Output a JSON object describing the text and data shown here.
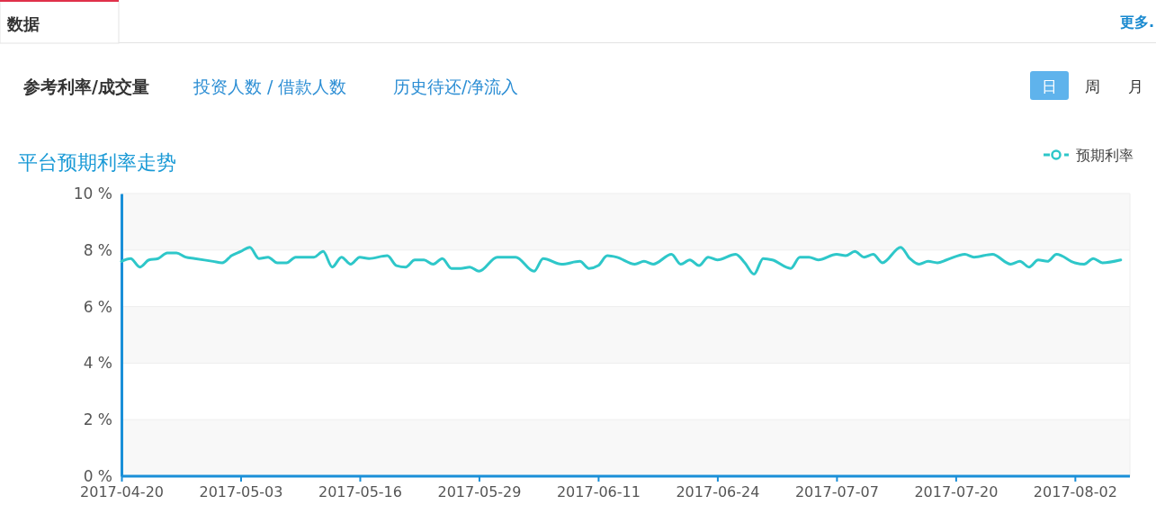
{
  "chart_data": {
    "type": "line",
    "title": "平台预期利率走势",
    "annotations": [
      "数据",
      "更多.",
      "参考利率/成交量",
      "投资人数 / 借款人数",
      "历史待还/净流入",
      "日",
      "周",
      "月"
    ],
    "series": [
      {
        "name": "预期利率",
        "color": "#2ec7c9",
        "x": [
          "2017-04-20",
          "2017-04-21",
          "2017-04-22",
          "2017-04-23",
          "2017-04-24",
          "2017-04-25",
          "2017-04-26",
          "2017-04-27",
          "2017-04-28",
          "2017-04-30",
          "2017-05-01",
          "2017-05-02",
          "2017-05-03",
          "2017-05-04",
          "2017-05-05",
          "2017-05-06",
          "2017-05-07",
          "2017-05-08",
          "2017-05-09",
          "2017-05-11",
          "2017-05-12",
          "2017-05-13",
          "2017-05-14",
          "2017-05-15",
          "2017-05-16",
          "2017-05-17",
          "2017-05-19",
          "2017-05-20",
          "2017-05-21",
          "2017-05-22",
          "2017-05-23",
          "2017-05-24",
          "2017-05-25",
          "2017-05-26",
          "2017-05-27",
          "2017-05-28",
          "2017-05-29",
          "2017-05-31",
          "2017-06-02",
          "2017-06-04",
          "2017-06-05",
          "2017-06-07",
          "2017-06-09",
          "2017-06-10",
          "2017-06-11",
          "2017-06-12",
          "2017-06-13",
          "2017-06-15",
          "2017-06-16",
          "2017-06-17",
          "2017-06-19",
          "2017-06-20",
          "2017-06-21",
          "2017-06-22",
          "2017-06-23",
          "2017-06-24",
          "2017-06-26",
          "2017-06-27",
          "2017-06-28",
          "2017-06-29",
          "2017-06-30",
          "2017-07-02",
          "2017-07-03",
          "2017-07-04",
          "2017-07-05",
          "2017-07-07",
          "2017-07-08",
          "2017-07-09",
          "2017-07-10",
          "2017-07-11",
          "2017-07-12",
          "2017-07-14",
          "2017-07-15",
          "2017-07-16",
          "2017-07-17",
          "2017-07-18",
          "2017-07-19",
          "2017-07-21",
          "2017-07-22",
          "2017-07-24",
          "2017-07-26",
          "2017-07-27",
          "2017-07-28",
          "2017-07-29",
          "2017-07-30",
          "2017-07-31",
          "2017-08-02",
          "2017-08-03",
          "2017-08-04",
          "2017-08-05",
          "2017-08-07"
        ],
        "values": [
          7.6,
          7.7,
          7.4,
          7.65,
          7.7,
          7.9,
          7.9,
          7.75,
          7.7,
          7.6,
          7.55,
          7.8,
          7.95,
          8.1,
          7.7,
          7.75,
          7.55,
          7.55,
          7.75,
          7.75,
          7.95,
          7.4,
          7.75,
          7.5,
          7.75,
          7.7,
          7.8,
          7.45,
          7.4,
          7.65,
          7.65,
          7.5,
          7.7,
          7.35,
          7.35,
          7.4,
          7.25,
          7.75,
          7.75,
          7.25,
          7.7,
          7.5,
          7.6,
          7.35,
          7.45,
          7.8,
          7.75,
          7.5,
          7.6,
          7.5,
          7.85,
          7.5,
          7.65,
          7.45,
          7.75,
          7.65,
          7.85,
          7.55,
          7.15,
          7.7,
          7.65,
          7.35,
          7.75,
          7.75,
          7.65,
          7.85,
          7.8,
          7.95,
          7.75,
          7.85,
          7.55,
          8.1,
          7.7,
          7.5,
          7.6,
          7.55,
          7.65,
          7.85,
          7.75,
          7.85,
          7.5,
          7.6,
          7.4,
          7.65,
          7.6,
          7.85,
          7.55,
          7.5,
          7.7,
          7.55,
          7.65
        ]
      }
    ],
    "xlim": [
      "2017-04-20",
      "2017-08-08"
    ],
    "xticks": [
      "2017-04-20",
      "2017-05-03",
      "2017-05-16",
      "2017-05-29",
      "2017-06-11",
      "2017-06-24",
      "2017-07-07",
      "2017-07-20",
      "2017-08-02"
    ],
    "ylim": [
      0,
      10
    ],
    "yticks": [
      {
        "value": 0,
        "label": "0 %"
      },
      {
        "value": 2,
        "label": "2 %"
      },
      {
        "value": 4,
        "label": "4 %"
      },
      {
        "value": 6,
        "label": "6 %"
      },
      {
        "value": 8,
        "label": "8 %"
      },
      {
        "value": 10,
        "label": "10 %"
      }
    ],
    "grid": "y",
    "legend": "top right",
    "line_style": "solid"
  }
}
